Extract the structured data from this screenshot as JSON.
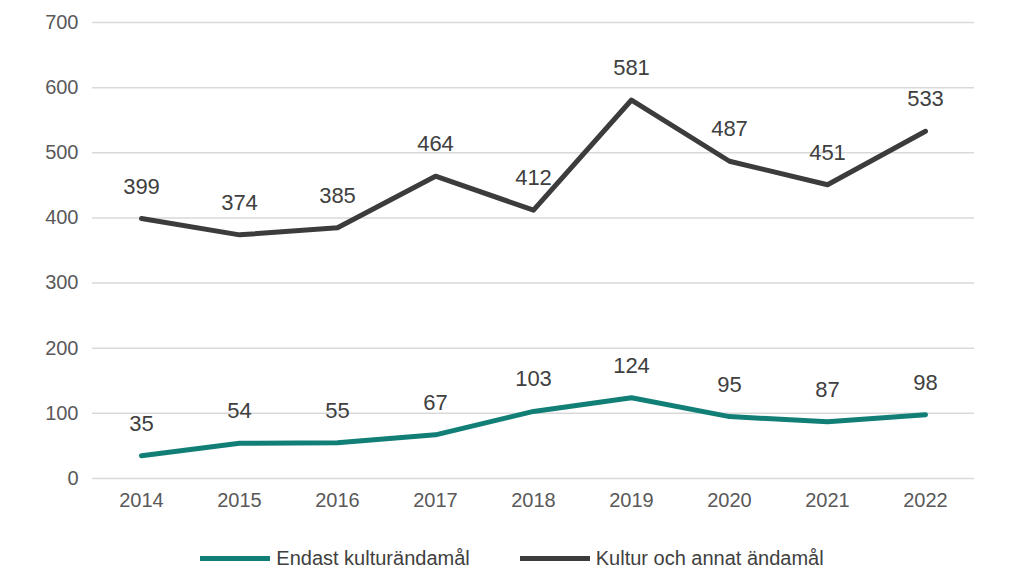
{
  "chart_data": {
    "type": "line",
    "categories": [
      "2014",
      "2015",
      "2016",
      "2017",
      "2018",
      "2019",
      "2020",
      "2021",
      "2022"
    ],
    "series": [
      {
        "name": "Endast kulturändamål",
        "color": "#127f77",
        "values": [
          35,
          54,
          55,
          67,
          103,
          124,
          95,
          87,
          98
        ]
      },
      {
        "name": "Kultur och annat ändamål",
        "color": "#3c3c3c",
        "values": [
          399,
          374,
          385,
          464,
          412,
          581,
          487,
          451,
          533
        ]
      }
    ],
    "ylim": [
      0,
      700
    ],
    "yticks": [
      0,
      100,
      200,
      300,
      400,
      500,
      600,
      700
    ],
    "grid": true,
    "data_labels": true,
    "legend": "bottom"
  }
}
